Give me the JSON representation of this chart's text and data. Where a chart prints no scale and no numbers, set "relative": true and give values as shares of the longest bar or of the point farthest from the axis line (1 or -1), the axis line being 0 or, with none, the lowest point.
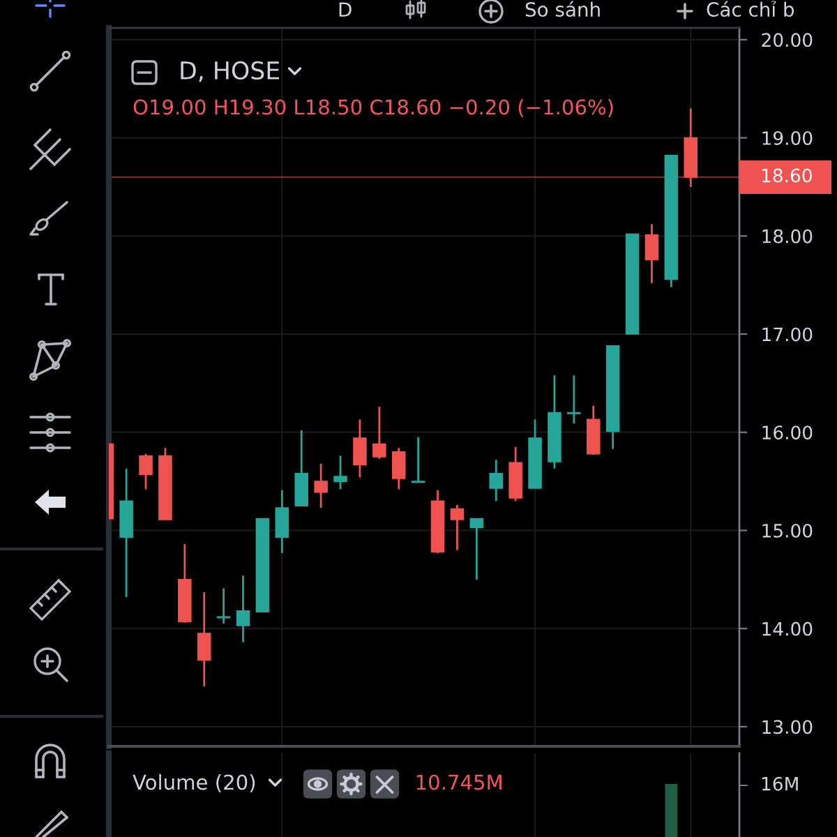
{
  "chart_data": [
    {
      "type": "candlestick",
      "title": "D, HOSE",
      "subtitle": "O19.00 H19.30 L18.50 C18.60 −0.20 (−1.06%)",
      "categories": [
        null,
        null,
        null,
        null,
        null,
        null,
        null,
        null,
        null,
        null,
        null,
        null,
        null,
        null,
        null,
        null,
        null,
        null,
        null,
        null,
        null,
        null,
        null,
        null,
        null,
        null,
        null,
        null,
        null,
        null,
        null
      ],
      "ohlc": [
        [
          15.88,
          15.88,
          15.12,
          15.12
        ],
        [
          14.93,
          15.63,
          14.32,
          15.3
        ],
        [
          15.76,
          15.78,
          15.42,
          15.57
        ],
        [
          15.76,
          15.84,
          15.11,
          15.11
        ],
        [
          14.5,
          14.86,
          14.06,
          14.07
        ],
        [
          13.95,
          14.37,
          13.41,
          13.68
        ],
        [
          14.11,
          14.41,
          14.05,
          14.12
        ],
        [
          14.03,
          14.54,
          13.86,
          14.18
        ],
        [
          14.17,
          15.12,
          14.17,
          15.12
        ],
        [
          14.93,
          15.41,
          14.77,
          15.23
        ],
        [
          15.25,
          16.02,
          15.25,
          15.58
        ],
        [
          15.5,
          15.68,
          15.23,
          15.39
        ],
        [
          15.5,
          15.76,
          15.42,
          15.55
        ],
        [
          15.94,
          16.13,
          15.54,
          15.67
        ],
        [
          15.88,
          16.26,
          15.73,
          15.75
        ],
        [
          15.8,
          15.84,
          15.42,
          15.53
        ],
        [
          15.49,
          15.95,
          15.49,
          15.5
        ],
        [
          15.3,
          15.41,
          14.77,
          14.78
        ],
        [
          15.22,
          15.26,
          14.8,
          15.11
        ],
        [
          15.03,
          15.12,
          14.5,
          15.12
        ],
        [
          15.43,
          15.72,
          15.3,
          15.58
        ],
        [
          15.69,
          15.85,
          15.3,
          15.33
        ],
        [
          15.43,
          16.13,
          15.43,
          15.94
        ],
        [
          15.7,
          16.58,
          15.63,
          16.2
        ],
        [
          16.19,
          16.58,
          16.09,
          16.2
        ],
        [
          16.13,
          16.27,
          15.77,
          15.78
        ],
        [
          16.01,
          16.88,
          15.83,
          16.88
        ],
        [
          17.0,
          18.02,
          17.0,
          18.02
        ],
        [
          18.01,
          18.12,
          17.52,
          17.76
        ],
        [
          17.56,
          18.82,
          17.48,
          18.82
        ],
        [
          19.0,
          19.3,
          18.5,
          18.6
        ]
      ],
      "colors": [
        "#ef5350",
        "#26a69a",
        "#ef5350",
        "#ef5350",
        "#ef5350",
        "#ef5350",
        "#26a69a",
        "#26a69a",
        "#26a69a",
        "#26a69a",
        "#26a69a",
        "#ef5350",
        "#26a69a",
        "#ef5350",
        "#ef5350",
        "#ef5350",
        "#26a69a",
        "#ef5350",
        "#ef5350",
        "#26a69a",
        "#26a69a",
        "#ef5350",
        "#26a69a",
        "#26a69a",
        "#26a69a",
        "#ef5350",
        "#26a69a",
        "#26a69a",
        "#ef5350",
        "#26a69a",
        "#ef5350"
      ],
      "ylim": [
        12.8,
        20.12
      ],
      "yticks": [
        {
          "value": 13,
          "label": "13.00"
        },
        {
          "value": 14,
          "label": "14.00"
        },
        {
          "value": 15,
          "label": "15.00"
        },
        {
          "value": 16,
          "label": "16.00"
        },
        {
          "value": 17,
          "label": "17.00"
        },
        {
          "value": 18,
          "label": "18.00"
        },
        {
          "value": 19,
          "label": "19.00"
        },
        {
          "value": 20,
          "label": "20.00"
        }
      ],
      "grid": true,
      "ref_lines": [
        {
          "axis": "y",
          "value": 18.6,
          "label": "18.60",
          "color": "#f05252"
        }
      ],
      "annotations": [
        "D",
        "So sánh",
        "Các chỉ b"
      ]
    },
    {
      "type": "bar",
      "title": "Volume (20)",
      "relative": true,
      "categories": [
        null,
        null,
        null,
        null,
        null,
        null,
        null,
        null,
        null,
        null,
        null,
        null,
        null,
        null,
        null,
        null,
        null,
        null,
        null,
        null,
        null,
        null,
        null,
        null,
        null,
        null,
        null,
        null,
        null,
        null,
        null
      ],
      "values": [
        null,
        null,
        null,
        null,
        null,
        null,
        null,
        null,
        null,
        null,
        null,
        null,
        null,
        null,
        null,
        null,
        null,
        null,
        null,
        null,
        null,
        null,
        null,
        null,
        null,
        null,
        null,
        null,
        null,
        1,
        null
      ],
      "color": "#1f5f45",
      "grid": "x",
      "annotations": [
        "10.745M",
        "16M"
      ]
    }
  ]
}
